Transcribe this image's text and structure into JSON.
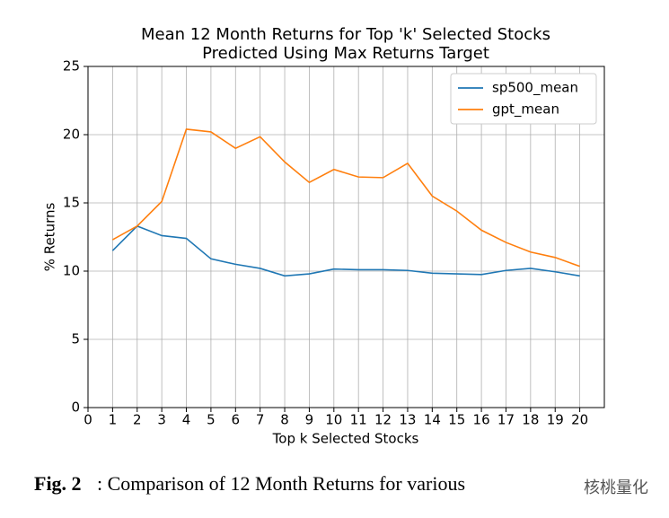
{
  "chart_data": {
    "type": "line",
    "title": [
      "Mean 12 Month Returns for Top 'k' Selected Stocks",
      "Predicted Using Max Returns Target"
    ],
    "x_label": "Top k Selected Stocks",
    "y_label": "% Returns",
    "x": [
      1,
      2,
      3,
      4,
      5,
      6,
      7,
      8,
      9,
      10,
      11,
      12,
      13,
      14,
      15,
      16,
      17,
      18,
      19,
      20
    ],
    "series": [
      {
        "name": "sp500_mean",
        "color": "#1f77b4",
        "values": [
          11.5,
          13.3,
          12.6,
          12.4,
          10.9,
          10.5,
          10.2,
          9.65,
          9.8,
          10.15,
          10.1,
          10.1,
          10.05,
          9.85,
          9.8,
          9.75,
          10.05,
          10.2,
          9.95,
          9.65
        ]
      },
      {
        "name": "gpt_mean",
        "color": "#ff7f0e",
        "values": [
          12.3,
          13.3,
          15.1,
          20.4,
          20.2,
          19.0,
          19.85,
          18.0,
          16.5,
          17.45,
          16.9,
          16.85,
          17.9,
          15.5,
          14.4,
          13.0,
          12.1,
          11.4,
          11.0,
          10.35
        ]
      }
    ],
    "xlim": [
      0,
      21
    ],
    "ylim": [
      0,
      25
    ],
    "xticks": [
      0,
      1,
      2,
      3,
      4,
      5,
      6,
      7,
      8,
      9,
      10,
      11,
      12,
      13,
      14,
      15,
      16,
      17,
      18,
      19,
      20
    ],
    "yticks": [
      0,
      5,
      10,
      15,
      20,
      25
    ],
    "grid": true,
    "legend": "upper-right"
  },
  "caption": {
    "label": "Fig. 2",
    "text": ": Comparison of 12 Month Returns for various"
  },
  "watermark": "核桃量化"
}
